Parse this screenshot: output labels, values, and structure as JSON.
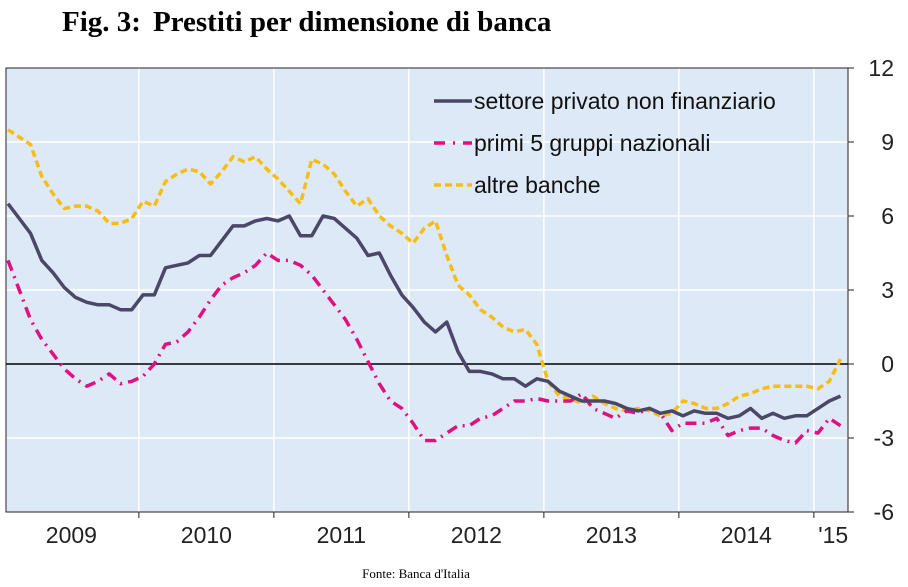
{
  "header": {
    "fig_label": "Fig. 3:",
    "title": "Prestiti per dimensione di banca"
  },
  "source": "Fonte: Banca d'Italia",
  "colors": {
    "plot_bg": "#dde9f6",
    "grid": "#ffffff",
    "zero_line": "#000000",
    "series_private": "#4a4767",
    "series_top5": "#e0107f",
    "series_other": "#f7bd14"
  },
  "chart_data": {
    "type": "line",
    "title": "Prestiti per dimensione di banca",
    "xlabel": "",
    "ylabel": "",
    "x_tick_labels": [
      "2009",
      "2010",
      "2011",
      "2012",
      "2013",
      "2014",
      "'15"
    ],
    "y_ticks": [
      12,
      9,
      6,
      3,
      0,
      -3,
      -6
    ],
    "ylim": [
      -6,
      12
    ],
    "xlim": [
      "2009-01",
      "2015-03"
    ],
    "grid": true,
    "legend": "top-right",
    "y_axis_side": "right",
    "x": [
      "2009-01",
      "2009-02",
      "2009-03",
      "2009-04",
      "2009-05",
      "2009-06",
      "2009-07",
      "2009-08",
      "2009-09",
      "2009-10",
      "2009-11",
      "2009-12",
      "2010-01",
      "2010-02",
      "2010-03",
      "2010-04",
      "2010-05",
      "2010-06",
      "2010-07",
      "2010-08",
      "2010-09",
      "2010-10",
      "2010-11",
      "2010-12",
      "2011-01",
      "2011-02",
      "2011-03",
      "2011-04",
      "2011-05",
      "2011-06",
      "2011-07",
      "2011-08",
      "2011-09",
      "2011-10",
      "2011-11",
      "2011-12",
      "2012-01",
      "2012-02",
      "2012-03",
      "2012-04",
      "2012-05",
      "2012-06",
      "2012-07",
      "2012-08",
      "2012-09",
      "2012-10",
      "2012-11",
      "2012-12",
      "2013-01",
      "2013-02",
      "2013-03",
      "2013-04",
      "2013-05",
      "2013-06",
      "2013-07",
      "2013-08",
      "2013-09",
      "2013-10",
      "2013-11",
      "2013-12",
      "2014-01",
      "2014-02",
      "2014-03",
      "2014-04",
      "2014-05",
      "2014-06",
      "2014-07",
      "2014-08",
      "2014-09",
      "2014-10",
      "2014-11",
      "2014-12",
      "2015-01",
      "2015-02",
      "2015-03"
    ],
    "series": [
      {
        "name": "settore privato non finanziario",
        "style": "solid",
        "color": "#4a4767",
        "values": [
          6.5,
          5.9,
          5.3,
          4.2,
          3.7,
          3.1,
          2.7,
          2.5,
          2.4,
          2.4,
          2.2,
          2.2,
          2.8,
          2.8,
          3.9,
          4.0,
          4.1,
          4.4,
          4.4,
          5.0,
          5.6,
          5.6,
          5.8,
          5.9,
          5.8,
          6.0,
          5.2,
          5.2,
          6.0,
          5.9,
          5.5,
          5.1,
          4.4,
          4.5,
          3.6,
          2.8,
          2.3,
          1.7,
          1.3,
          1.7,
          0.5,
          -0.3,
          -0.3,
          -0.4,
          -0.6,
          -0.6,
          -0.9,
          -0.6,
          -0.7,
          -1.1,
          -1.3,
          -1.5,
          -1.5,
          -1.5,
          -1.6,
          -1.8,
          -1.9,
          -1.8,
          -2.0,
          -1.9,
          -2.1,
          -1.9,
          -2.0,
          -2.0,
          -2.2,
          -2.1,
          -1.8,
          -2.2,
          -2.0,
          -2.2,
          -2.1,
          -2.1,
          -1.8,
          -1.5,
          -1.3
        ]
      },
      {
        "name": "primi 5 gruppi nazionali",
        "style": "dash-dot",
        "color": "#e0107f",
        "values": [
          4.2,
          3.0,
          1.8,
          1.0,
          0.4,
          -0.2,
          -0.6,
          -0.9,
          -0.7,
          -0.4,
          -0.8,
          -0.7,
          -0.5,
          0.0,
          0.8,
          0.9,
          1.3,
          1.9,
          2.6,
          3.2,
          3.5,
          3.7,
          4.0,
          4.5,
          4.2,
          4.2,
          4.0,
          3.6,
          3.0,
          2.4,
          1.8,
          1.0,
          0.1,
          -0.8,
          -1.5,
          -1.8,
          -2.4,
          -3.1,
          -3.1,
          -2.8,
          -2.5,
          -2.5,
          -2.2,
          -2.1,
          -1.8,
          -1.5,
          -1.5,
          -1.4,
          -1.5,
          -1.5,
          -1.5,
          -1.2,
          -1.8,
          -2.0,
          -2.2,
          -1.9,
          -2.0,
          -1.8,
          -2.0,
          -2.7,
          -2.4,
          -2.4,
          -2.4,
          -2.2,
          -2.9,
          -2.7,
          -2.6,
          -2.6,
          -2.9,
          -3.1,
          -3.2,
          -2.7,
          -2.8,
          -2.2,
          -2.5
        ]
      },
      {
        "name": "altre banche",
        "style": "dashed",
        "color": "#f7bd14",
        "values": [
          9.5,
          9.2,
          8.9,
          7.6,
          6.9,
          6.3,
          6.4,
          6.4,
          6.2,
          5.7,
          5.7,
          5.9,
          6.6,
          6.4,
          7.4,
          7.7,
          7.9,
          7.8,
          7.3,
          7.8,
          8.4,
          8.2,
          8.4,
          7.9,
          7.5,
          7.0,
          6.5,
          8.3,
          8.1,
          7.7,
          7.0,
          6.4,
          6.7,
          6.0,
          5.6,
          5.3,
          4.9,
          5.5,
          5.8,
          4.4,
          3.2,
          2.8,
          2.2,
          1.9,
          1.5,
          1.3,
          1.4,
          0.8,
          -0.7,
          -1.3,
          -1.4,
          -1.6,
          -1.3,
          -1.6,
          -1.8,
          -1.9,
          -1.8,
          -1.9,
          -2.1,
          -2.0,
          -1.5,
          -1.6,
          -1.8,
          -1.8,
          -1.6,
          -1.3,
          -1.2,
          -1.0,
          -0.9,
          -0.9,
          -0.9,
          -0.9,
          -1.0,
          -0.7,
          0.2
        ]
      }
    ]
  }
}
